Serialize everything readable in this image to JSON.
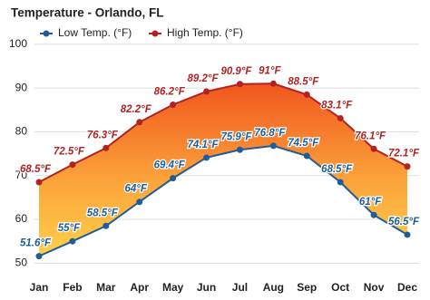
{
  "chart_data": {
    "type": "line",
    "title": "Temperature - Orlando, FL",
    "categories": [
      "Jan",
      "Feb",
      "Mar",
      "Apr",
      "May",
      "Jun",
      "Jul",
      "Aug",
      "Sep",
      "Oct",
      "Nov",
      "Dec"
    ],
    "series": [
      {
        "name": "Low Temp. (°F)",
        "color": "#1f5c99",
        "values": [
          51.6,
          55,
          58.5,
          64,
          69.4,
          74.1,
          75.9,
          76.8,
          74.5,
          68.5,
          61,
          56.5
        ],
        "value_labels": [
          "51.6°F",
          "55°F",
          "58.5°F",
          "64°F",
          "69.4°F",
          "74.1°F",
          "75.9°F",
          "76.8°F",
          "74.5°F",
          "68.5°F",
          "61°F",
          "56.5°F"
        ]
      },
      {
        "name": "High Temp. (°F)",
        "color": "#b22222",
        "values": [
          68.5,
          72.5,
          76.3,
          82.2,
          86.2,
          89.2,
          90.9,
          91,
          88.5,
          83.1,
          76.1,
          72.1
        ],
        "value_labels": [
          "68.5°F",
          "72.5°F",
          "76.3°F",
          "82.2°F",
          "86.2°F",
          "89.2°F",
          "90.9°F",
          "91°F",
          "88.5°F",
          "83.1°F",
          "76.1°F",
          "72.1°F"
        ]
      }
    ],
    "ylim": [
      48,
      101
    ],
    "yticks": [
      50,
      60,
      70,
      80,
      90,
      100
    ],
    "grid": true
  }
}
